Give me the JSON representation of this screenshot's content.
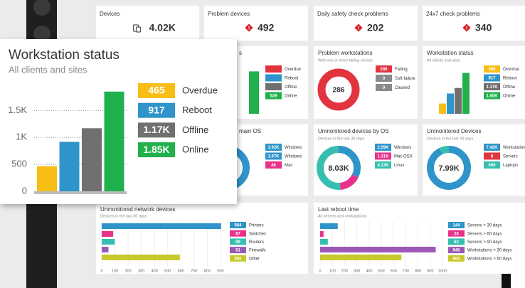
{
  "kpis": [
    {
      "title": "Devices",
      "value": "4.02K"
    },
    {
      "title": "Problem devices",
      "value": "492"
    },
    {
      "title": "Daily safety check problems",
      "value": "202"
    },
    {
      "title": "24x7 check problems",
      "value": "340"
    }
  ],
  "widgets": [
    {
      "type": "vbar",
      "title": "s",
      "categories": [
        "Overdue",
        "Reboot",
        "Offline",
        "Online"
      ],
      "values": [
        null,
        null,
        null,
        529
      ],
      "colors": [
        "#e2343f",
        "#2e94c9",
        "#707070",
        "#20b14c"
      ],
      "ylim": [
        0,
        550
      ]
    },
    {
      "type": "donut",
      "title": "Problem workstations",
      "subtitle": "With one or more failing checks",
      "center_label": "286",
      "categories": [
        "Failing",
        "Soft failure",
        "Cleared"
      ],
      "values": [
        286,
        0,
        0
      ],
      "colors": [
        "#e2343f",
        "#8a8a8a",
        "#8a8a8a"
      ]
    },
    {
      "type": "vbar",
      "title": "Workstation status",
      "subtitle": "All clients and sites",
      "categories": [
        "Overdue",
        "Reboot",
        "Offline",
        "Online"
      ],
      "values": [
        465,
        917,
        1170,
        1850
      ],
      "value_labels": [
        "465",
        "917",
        "1.17K",
        "1.85K"
      ],
      "colors": [
        "#f7be16",
        "#2e94c9",
        "#707070",
        "#20b14c"
      ],
      "ylim": [
        0,
        1900
      ]
    },
    {
      "type": "donut",
      "title": "main OS",
      "categories": [
        "Windows",
        "Windows",
        "Mac"
      ],
      "values": [
        3920,
        1970,
        46
      ],
      "value_labels": [
        "3.92K",
        "1.97K",
        "46"
      ],
      "colors": [
        "#2e94c9",
        "#2e94c9",
        "#e8318a"
      ]
    },
    {
      "type": "donut",
      "title": "Unmonitored devices by OS",
      "subtitle": "Devices in the last 30 days",
      "center_label": "8.03K",
      "categories": [
        "Windows",
        "Mac OSX",
        "Linux"
      ],
      "values": [
        2590,
        1310,
        4130
      ],
      "value_labels": [
        "2.59K",
        "1.31K",
        "4.13K"
      ],
      "colors": [
        "#2e94c9",
        "#e8318a",
        "#36bfb0"
      ]
    },
    {
      "type": "donut",
      "title": "Unmonitored Devices",
      "subtitle": "Devices in the last 30 days",
      "center_label": "7.99K",
      "categories": [
        "Workstations",
        "Servers",
        "Laptops"
      ],
      "values": [
        7420,
        8,
        569
      ],
      "value_labels": [
        "7.42K",
        "8",
        "569"
      ],
      "colors": [
        "#2e94c9",
        "#e2343f",
        "#36bfb0"
      ]
    },
    {
      "type": "hbar",
      "title": "Unmonitored network devices",
      "subtitle": "Devices in the last 30 days",
      "categories": [
        "Printers",
        "Switches",
        "Routers",
        "Firewalls",
        "Other"
      ],
      "values": [
        904,
        87,
        99,
        51,
        592
      ],
      "colors": [
        "#2e94c9",
        "#e8318a",
        "#36bfb0",
        "#9b59b6",
        "#c8c92a"
      ],
      "xlim": [
        0,
        900
      ],
      "xticks": [
        0,
        100,
        200,
        300,
        400,
        500,
        600,
        700,
        800,
        900
      ]
    },
    {
      "type": "hbar",
      "title": "Last reboot time",
      "subtitle": "All servers and workstations",
      "categories": [
        "Servers > 30 days",
        "Servers > 60 days",
        "Servers > 90 days",
        "Workstations > 30 days",
        "Workstations > 60 days"
      ],
      "values": [
        144,
        28,
        63,
        945,
        664
      ],
      "colors": [
        "#2e94c9",
        "#e8318a",
        "#36bfb0",
        "#9b59b6",
        "#c8c92a"
      ],
      "xlim": [
        0,
        1000
      ],
      "xticks": [
        0,
        100,
        200,
        300,
        400,
        500,
        600,
        700,
        800,
        900,
        1000
      ]
    }
  ],
  "popup": {
    "type": "vbar",
    "title": "Workstation status",
    "subtitle": "All clients and sites",
    "categories": [
      "Overdue",
      "Reboot",
      "Offline",
      "Online"
    ],
    "values": [
      465,
      917,
      1170,
      1850
    ],
    "value_labels": [
      "465",
      "917",
      "1.17K",
      "1.85K"
    ],
    "colors": [
      "#f7be16",
      "#2e94c9",
      "#707070",
      "#20b14c"
    ],
    "ylim": [
      0,
      1900
    ],
    "yticks": [
      0,
      500,
      {
        "value": 1000,
        "label": "1K"
      },
      {
        "value": 1500,
        "label": "1.5K"
      }
    ],
    "grid": true
  }
}
